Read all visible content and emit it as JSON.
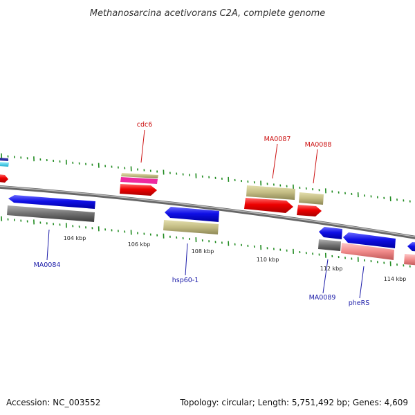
{
  "title": "Methanosarcina acetivorans C2A, complete genome",
  "footer": {
    "accession": "Accession: NC_003552",
    "summary": "Topology: circular; Length: 5,751,492 bp; Genes: 4,609"
  },
  "ticks": [
    "104 kbp",
    "106 kbp",
    "108 kbp",
    "110 kbp",
    "112 kbp",
    "114 kbp"
  ],
  "gene_labels": {
    "top": [
      "cdc6",
      "MA0087",
      "MA0088"
    ],
    "bottom": [
      "MA0084",
      "hsp60-1",
      "MA0089",
      "pheRS"
    ]
  },
  "colors": {
    "forward_cds": "#ff0000",
    "reverse_cds": "#1010ee",
    "tan_feature": "#c2bb82",
    "gray_feature": "#6e6e6e",
    "pink_feature": "#f08a8a",
    "magenta_feature": "#ee2aa0",
    "tick_green": "#1e8a1e",
    "backbone": "#888888"
  }
}
